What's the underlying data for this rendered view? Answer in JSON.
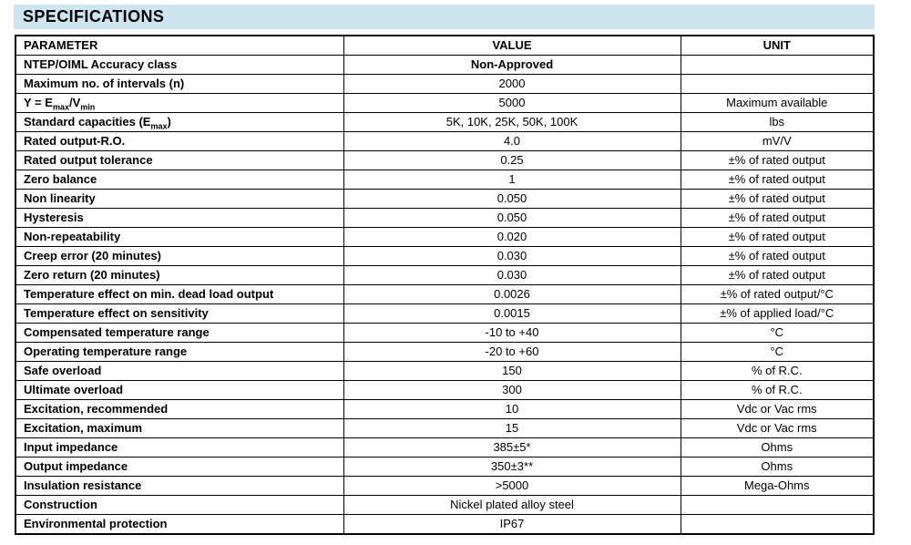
{
  "title": "SPECIFICATIONS",
  "colors": {
    "title_band_bg": "#cde4f1",
    "border": "#000000",
    "text": "#000000"
  },
  "table": {
    "headers": [
      "PARAMETER",
      "VALUE",
      "UNIT"
    ],
    "rows": [
      {
        "parameter": "NTEP/OIML Accuracy class",
        "value": "Non-Approved",
        "unit": "",
        "value_bold": true
      },
      {
        "parameter": "Maximum no. of intervals (n)",
        "value": "2000",
        "unit": ""
      },
      {
        "parameter": "Y = E_{max}/V_{min}",
        "value": "5000",
        "unit": "Maximum available"
      },
      {
        "parameter": "Standard capacities (E_{max})",
        "value": "5K, 10K, 25K, 50K, 100K",
        "unit": "lbs"
      },
      {
        "parameter": "Rated output-R.O.",
        "value": "4.0",
        "unit": "mV/V"
      },
      {
        "parameter": "Rated output tolerance",
        "value": "0.25",
        "unit": "±% of rated output"
      },
      {
        "parameter": "Zero balance",
        "value": "1",
        "unit": "±% of rated output"
      },
      {
        "parameter": "Non linearity",
        "value": "0.050",
        "unit": "±% of rated output"
      },
      {
        "parameter": "Hysteresis",
        "value": "0.050",
        "unit": "±% of rated output"
      },
      {
        "parameter": "Non-repeatability",
        "value": "0.020",
        "unit": "±% of rated output"
      },
      {
        "parameter": "Creep error (20 minutes)",
        "value": "0.030",
        "unit": "±% of rated output"
      },
      {
        "parameter": "Zero return (20 minutes)",
        "value": "0.030",
        "unit": "±% of rated output"
      },
      {
        "parameter": "Temperature effect on min. dead load output",
        "value": "0.0026",
        "unit": "±% of rated output/°C"
      },
      {
        "parameter": "Temperature effect on sensitivity",
        "value": "0.0015",
        "unit": "±% of applied load/°C"
      },
      {
        "parameter": "Compensated temperature range",
        "value": "-10 to +40",
        "unit": "°C"
      },
      {
        "parameter": "Operating temperature range",
        "value": "-20 to +60",
        "unit": "°C"
      },
      {
        "parameter": "Safe overload",
        "value": "150",
        "unit": "% of R.C."
      },
      {
        "parameter": "Ultimate overload",
        "value": "300",
        "unit": "% of R.C."
      },
      {
        "parameter": "Excitation, recommended",
        "value": "10",
        "unit": "Vdc or Vac rms"
      },
      {
        "parameter": "Excitation, maximum",
        "value": "15",
        "unit": "Vdc or Vac rms"
      },
      {
        "parameter": "Input impedance",
        "value": "385±5*",
        "unit": "Ohms"
      },
      {
        "parameter": "Output impedance",
        "value": "350±3**",
        "unit": "Ohms"
      },
      {
        "parameter": "Insulation resistance",
        "value": ">5000",
        "unit": "Mega-Ohms"
      },
      {
        "parameter": "Construction",
        "value": "Nickel plated alloy steel",
        "unit": ""
      },
      {
        "parameter": "Environmental protection",
        "value": "IP67",
        "unit": ""
      }
    ]
  }
}
